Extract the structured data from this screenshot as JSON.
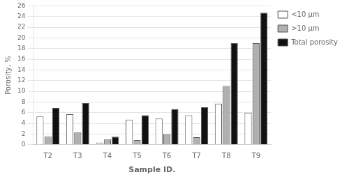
{
  "chart_data": {
    "type": "bar",
    "xlabel": "Sample ID.",
    "ylabel": "Porosity, %",
    "categories": [
      "T2",
      "T3",
      "T4",
      "T5",
      "T6",
      "T7",
      "T8",
      "T9"
    ],
    "series": [
      {
        "name": "<10 μm",
        "color": "#ffffff",
        "values": [
          5.3,
          5.7,
          0.4,
          4.7,
          4.9,
          5.5,
          7.7,
          6.0
        ]
      },
      {
        "name": ">10 μm",
        "color": "#b0b0b0",
        "values": [
          1.5,
          2.3,
          1.0,
          0.9,
          2.0,
          1.4,
          11.0,
          19.0
        ]
      },
      {
        "name": "Total porosity",
        "color": "#111111",
        "values": [
          6.9,
          7.8,
          1.5,
          5.5,
          6.7,
          7.0,
          19.0,
          24.7
        ]
      }
    ],
    "ylim": [
      0,
      26
    ],
    "yticks": [
      0,
      2,
      4,
      6,
      8,
      10,
      12,
      14,
      16,
      18,
      20,
      22,
      24,
      26
    ],
    "grid": true,
    "legend": "right"
  }
}
